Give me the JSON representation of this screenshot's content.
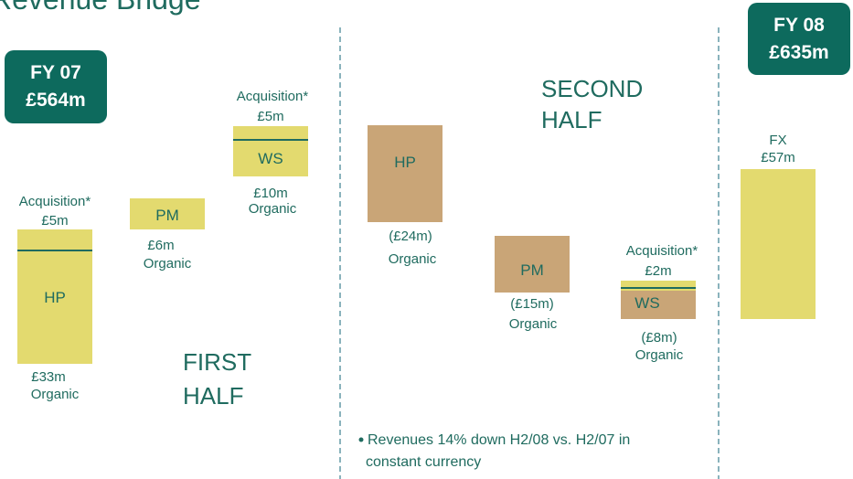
{
  "header": {
    "title": "Revenue Bridge"
  },
  "start": {
    "label": "FY 07",
    "amount": "£564m"
  },
  "end": {
    "label": "FY 08",
    "amount": "£635m"
  },
  "first_half": {
    "label": [
      "FIRST",
      "HALF"
    ],
    "items": [
      {
        "name": "HP",
        "above": [
          "Acquisition*",
          "£5m"
        ],
        "below": [
          "£33m",
          "Organic"
        ]
      },
      {
        "name": "PM",
        "below": [
          "£6m",
          "Organic"
        ]
      },
      {
        "name": "WS",
        "above": [
          "Acquisition*",
          "£5m"
        ],
        "below": [
          "£10m",
          "Organic"
        ]
      }
    ]
  },
  "second_half": {
    "label": [
      "SECOND",
      "HALF"
    ],
    "items": [
      {
        "name": "HP",
        "below": [
          "(£24m)",
          "Organic"
        ]
      },
      {
        "name": "PM",
        "below": [
          "(£15m)",
          "Organic"
        ]
      },
      {
        "name": "WS",
        "above": [
          "Acquisition*",
          "£2m"
        ],
        "below": [
          "(£8m)",
          "Organic"
        ]
      }
    ],
    "note": [
      "Revenues 14% down H2/08 vs. H2/07 in",
      "constant currency"
    ]
  },
  "fx": {
    "name": "FX",
    "amount": "£57m"
  }
}
